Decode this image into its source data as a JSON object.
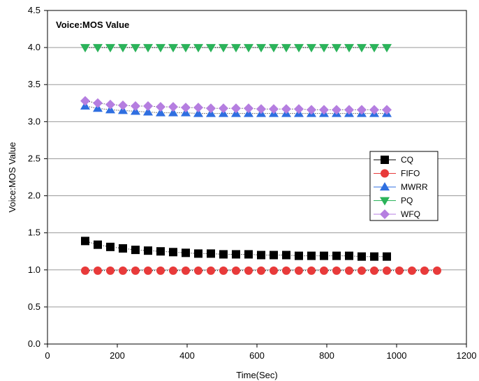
{
  "chart_data": {
    "type": "scatter",
    "title": "Voice:MOS Value",
    "xlabel": "Time(Sec)",
    "ylabel": "Voice:MOS Value",
    "xlim": [
      0,
      1200
    ],
    "ylim": [
      0.0,
      4.5
    ],
    "xticks": [
      "0",
      "200",
      "400",
      "600",
      "800",
      "1000",
      "1200"
    ],
    "yticks": [
      "0.0",
      "0.5",
      "1.0",
      "1.5",
      "2.0",
      "2.5",
      "3.0",
      "3.5",
      "4.0",
      "4.5"
    ],
    "grid": "horizontal",
    "legend_position": "right",
    "series": [
      {
        "name": "CQ",
        "color": "#000000",
        "marker": "square",
        "x": [
          108,
          144,
          180,
          216,
          252,
          288,
          324,
          360,
          396,
          432,
          468,
          504,
          540,
          576,
          612,
          648,
          684,
          720,
          756,
          792,
          828,
          864,
          900,
          936,
          972
        ],
        "y": [
          1.39,
          1.34,
          1.31,
          1.29,
          1.27,
          1.26,
          1.25,
          1.24,
          1.23,
          1.22,
          1.22,
          1.21,
          1.21,
          1.21,
          1.2,
          1.2,
          1.2,
          1.19,
          1.19,
          1.19,
          1.19,
          1.19,
          1.18,
          1.18,
          1.18
        ]
      },
      {
        "name": "FIFO",
        "color": "#e83a3a",
        "marker": "circle",
        "x": [
          108,
          144,
          180,
          216,
          252,
          288,
          324,
          360,
          396,
          432,
          468,
          504,
          540,
          576,
          612,
          648,
          684,
          720,
          756,
          792,
          828,
          864,
          900,
          936,
          972,
          1008,
          1044,
          1080,
          1116
        ],
        "y": [
          0.99,
          0.99,
          0.99,
          0.99,
          0.99,
          0.99,
          0.99,
          0.99,
          0.99,
          0.99,
          0.99,
          0.99,
          0.99,
          0.99,
          0.99,
          0.99,
          0.99,
          0.99,
          0.99,
          0.99,
          0.99,
          0.99,
          0.99,
          0.99,
          0.99,
          0.99,
          0.99,
          0.99,
          0.99
        ]
      },
      {
        "name": "MWRR",
        "color": "#2f6fe0",
        "marker": "triangle-up",
        "x": [
          108,
          144,
          180,
          216,
          252,
          288,
          324,
          360,
          396,
          432,
          468,
          504,
          540,
          576,
          612,
          648,
          684,
          720,
          756,
          792,
          828,
          864,
          900,
          936,
          972
        ],
        "y": [
          3.21,
          3.18,
          3.16,
          3.15,
          3.14,
          3.13,
          3.12,
          3.12,
          3.12,
          3.11,
          3.11,
          3.11,
          3.11,
          3.11,
          3.11,
          3.11,
          3.11,
          3.11,
          3.11,
          3.11,
          3.11,
          3.11,
          3.11,
          3.11,
          3.11
        ]
      },
      {
        "name": "PQ",
        "color": "#2bb35a",
        "marker": "triangle-down",
        "x": [
          108,
          144,
          180,
          216,
          252,
          288,
          324,
          360,
          396,
          432,
          468,
          504,
          540,
          576,
          612,
          648,
          684,
          720,
          756,
          792,
          828,
          864,
          900,
          936,
          972
        ],
        "y": [
          4.0,
          4.0,
          4.0,
          4.0,
          4.0,
          4.0,
          4.0,
          4.0,
          4.0,
          4.0,
          4.0,
          4.0,
          4.0,
          4.0,
          4.0,
          4.0,
          4.0,
          4.0,
          4.0,
          4.0,
          4.0,
          4.0,
          4.0,
          4.0,
          4.0
        ]
      },
      {
        "name": "WFQ",
        "color": "#b57ee0",
        "marker": "diamond",
        "x": [
          108,
          144,
          180,
          216,
          252,
          288,
          324,
          360,
          396,
          432,
          468,
          504,
          540,
          576,
          612,
          648,
          684,
          720,
          756,
          792,
          828,
          864,
          900,
          936,
          972
        ],
        "y": [
          3.28,
          3.25,
          3.23,
          3.22,
          3.21,
          3.21,
          3.2,
          3.2,
          3.19,
          3.19,
          3.18,
          3.18,
          3.18,
          3.18,
          3.17,
          3.17,
          3.17,
          3.17,
          3.16,
          3.16,
          3.16,
          3.16,
          3.16,
          3.16,
          3.16
        ]
      }
    ]
  }
}
